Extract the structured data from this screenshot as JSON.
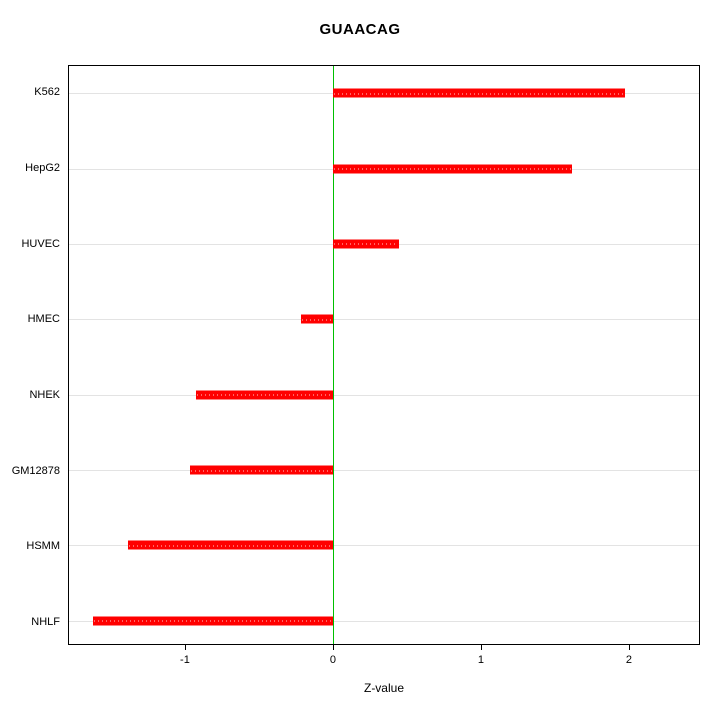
{
  "title": "GUAACAG",
  "chart_data": {
    "type": "bar",
    "orientation": "horizontal",
    "title": "GUAACAG",
    "xlabel": "Z-value",
    "ylabel": "",
    "categories": [
      "K562",
      "HepG2",
      "HUVEC",
      "HMEC",
      "NHEK",
      "GM12878",
      "HSMM",
      "NHLF"
    ],
    "values": [
      1.98,
      1.62,
      0.45,
      -0.22,
      -0.93,
      -0.97,
      -1.39,
      -1.63
    ],
    "xlim": [
      -1.79,
      2.48
    ],
    "xticks": [
      -1,
      0,
      1,
      2
    ],
    "grid": true,
    "legend": "none",
    "bar_color": "#ff0000",
    "zero_line_color": "#00c000",
    "grid_color": "#e3e3e3",
    "background_color": "#ffffff"
  }
}
